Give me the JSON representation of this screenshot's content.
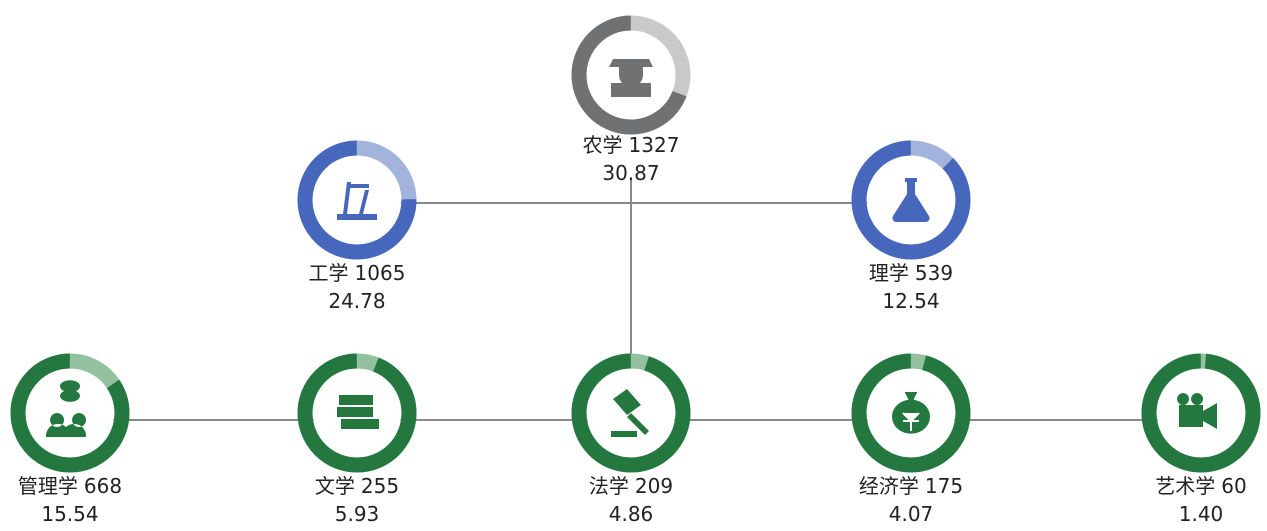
{
  "nodes": [
    {
      "name": "农学",
      "count": 1327,
      "share": 30.87,
      "color": "#707173",
      "light": "#c9c9c9"
    },
    {
      "name": "工学",
      "count": 1065,
      "share": 24.78,
      "color": "#4767bd",
      "light": "#a2b3dc"
    },
    {
      "name": "理学",
      "count": 539,
      "share": 12.54,
      "color": "#4767bd",
      "light": "#a2b3dc"
    },
    {
      "name": "管理学",
      "count": 668,
      "share": 15.54,
      "color": "#23773f",
      "light": "#93c09f"
    },
    {
      "name": "文学",
      "count": 255,
      "share": 5.93,
      "color": "#23773f",
      "light": "#93c09f"
    },
    {
      "name": "法学",
      "count": 209,
      "share": 4.86,
      "color": "#23773f",
      "light": "#93c09f"
    },
    {
      "name": "经济学",
      "count": 175,
      "share": 4.07,
      "color": "#23773f",
      "light": "#93c09f"
    },
    {
      "name": "艺术学",
      "count": 60,
      "share": {
        "value": 1.4,
        "label": "1.40"
      },
      "color": "#23773f",
      "light": "#93c09f"
    }
  ]
}
